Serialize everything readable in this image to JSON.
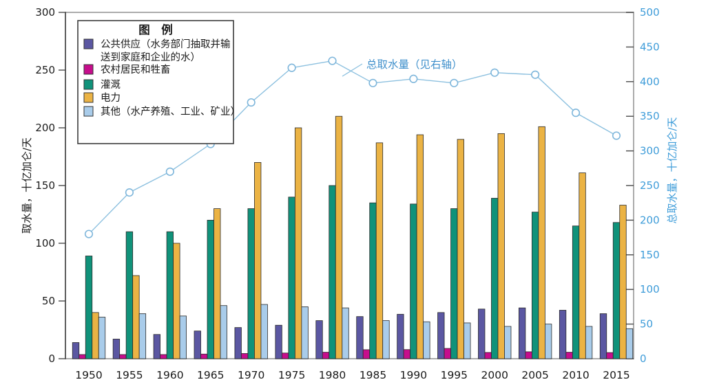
{
  "chart_data": {
    "type": "bar",
    "categories": [
      "1950",
      "1955",
      "1960",
      "1965",
      "1970",
      "1975",
      "1980",
      "1985",
      "1990",
      "1995",
      "2000",
      "2005",
      "2010",
      "2015"
    ],
    "series": [
      {
        "name": "公共供应（水务部门抽取并输送到家庭和企业的水）",
        "legend_lines": [
          "公共供应（水务部门抽取并输",
          "送到家庭和企业的水）"
        ],
        "color": "#5B57A2",
        "values": [
          14,
          17,
          21,
          24,
          27,
          29,
          33,
          36.5,
          38.5,
          40,
          43,
          44,
          42,
          39
        ]
      },
      {
        "name": "农村居民和牲畜",
        "legend_lines": [
          "农村居民和牲畜"
        ],
        "color": "#C60D8C",
        "values": [
          3.6,
          3.6,
          3.6,
          4.0,
          4.5,
          4.9,
          5.6,
          7.8,
          7.9,
          8.9,
          5.4,
          6.0,
          5.6,
          5.3
        ]
      },
      {
        "name": "灌溉",
        "legend_lines": [
          "灌溉"
        ],
        "color": "#10927A",
        "values": [
          89,
          110,
          110,
          120,
          130,
          140,
          150,
          135,
          134,
          130,
          139,
          127,
          115,
          118
        ]
      },
      {
        "name": "电力",
        "legend_lines": [
          "电力"
        ],
        "color": "#EBB344",
        "values": [
          40,
          72,
          100,
          130,
          170,
          200,
          210,
          187,
          194,
          190,
          195,
          201,
          161,
          133
        ]
      },
      {
        "name": "其他（水产养殖、工业、矿业）",
        "legend_lines": [
          "其他（水产养殖、工业、矿业）"
        ],
        "color": "#A9CCEA",
        "values": [
          36,
          39,
          37,
          46,
          47,
          45,
          44,
          33,
          32,
          31,
          28,
          30,
          28,
          26
        ]
      }
    ],
    "line_series": {
      "name": "总取水量",
      "axis": "right",
      "color": "#8CC0DF",
      "marker": "open-circle",
      "marker_fill": "#FFFFFF",
      "values": [
        180,
        240,
        270,
        310,
        370,
        420,
        430,
        398,
        404,
        398,
        413,
        410,
        355,
        322
      ]
    },
    "annotation": {
      "text": "总取水量（见右轴）",
      "color": "#3E8FCB"
    },
    "left_axis": {
      "label": "取水量，十亿加仑/天",
      "min": 0,
      "max": 300,
      "step": 50,
      "tick_labels": [
        "0",
        "50",
        "100",
        "150",
        "200",
        "250",
        "300"
      ],
      "color": "#1A1A1A"
    },
    "right_axis": {
      "label": "总取水量，十亿加仑/天",
      "min": 0,
      "max": 500,
      "step": 50,
      "tick_labels": [
        "0",
        "50",
        "100",
        "150",
        "200",
        "250",
        "300",
        "350",
        "400",
        "450",
        "500"
      ],
      "color": "#3E9CD9"
    },
    "legend": {
      "title": "图　例",
      "position": "top-left"
    },
    "grid": false,
    "xlabel": "",
    "ylabel": "取水量，十亿加仑/天",
    "ylabel_right": "总取水量，十亿加仑/天"
  },
  "colors": {
    "bar_outline": "#2B2B2B",
    "plot_border": "#ABABAB",
    "left_spine": "#4A4A4A",
    "tick": "#4A4A4A",
    "legend_border": "#3B3B3B",
    "background": "#FFFFFF"
  }
}
